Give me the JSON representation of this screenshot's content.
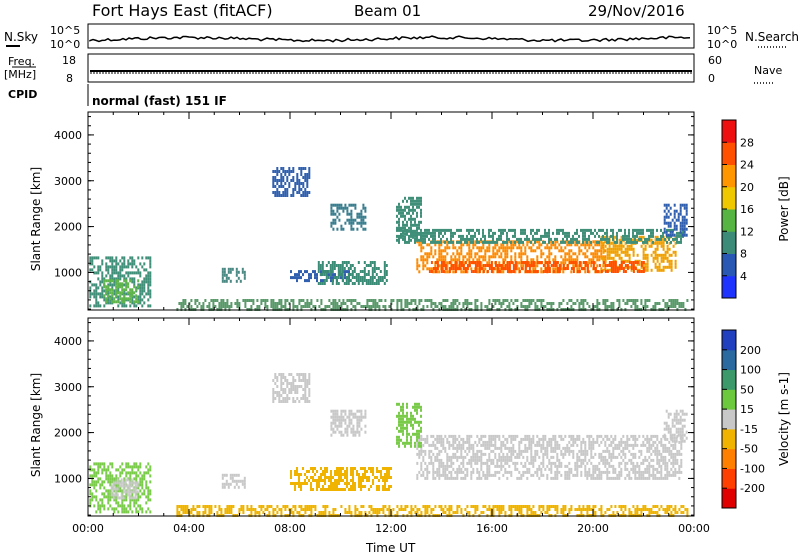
{
  "header": {
    "station": "Fort Hays East (fitACF)",
    "beam": "Beam 01",
    "date": "29/Nov/2016"
  },
  "strip_labels": {
    "nsky": "N.Sky",
    "nsearch": "N.Search",
    "freq_top": "Freq.",
    "freq_unit": "[MHz]",
    "nave": "Nave",
    "cpid": "CPID",
    "cpid_value": "normal (fast) 151 IF"
  },
  "strip_ticks": {
    "noise_left": [
      "10^5",
      "10^0"
    ],
    "noise_right": [
      "10^5",
      "10^0"
    ],
    "freq_left": [
      "18",
      "8"
    ],
    "nave_right": [
      "60",
      "0"
    ]
  },
  "chart_data": [
    {
      "type": "heatmap",
      "name": "power-panel",
      "ylabel": "Slant Range [km]",
      "ylim": [
        180,
        4500
      ],
      "yticks": [
        1000,
        2000,
        3000,
        4000
      ],
      "xlabel": "",
      "xlim": [
        0,
        24
      ],
      "xticks": [
        0,
        4,
        8,
        12,
        16,
        20,
        24
      ],
      "xtick_labels": [
        "00:00",
        "04:00",
        "08:00",
        "12:00",
        "16:00",
        "20:00",
        "00:00"
      ],
      "colorbar": {
        "label": "Power [dB]",
        "ticks": [
          "4",
          "8",
          "12",
          "16",
          "20",
          "24",
          "28"
        ],
        "colors": [
          "#1f33ff",
          "#2858b4",
          "#3c8a78",
          "#56b443",
          "#f0c800",
          "#ff9600",
          "#ff5000",
          "#ee1010"
        ]
      },
      "regions": [
        {
          "t0": 0.05,
          "t1": 2.5,
          "r0": 250,
          "r1": 1350,
          "color": "#3f8f79"
        },
        {
          "t0": 0.6,
          "t1": 2.0,
          "r0": 350,
          "r1": 850,
          "color": "#5fb44c"
        },
        {
          "t0": 5.3,
          "t1": 6.2,
          "r0": 800,
          "r1": 1100,
          "color": "#4b8a84"
        },
        {
          "t0": 8.0,
          "t1": 10.3,
          "r0": 850,
          "r1": 1050,
          "color": "#2f5fae"
        },
        {
          "t0": 9.1,
          "t1": 11.8,
          "r0": 780,
          "r1": 1250,
          "color": "#3a8c76"
        },
        {
          "t0": 9.6,
          "t1": 11.0,
          "r0": 1950,
          "r1": 2500,
          "color": "#3a7d8e"
        },
        {
          "t0": 7.3,
          "t1": 8.8,
          "r0": 2700,
          "r1": 3300,
          "color": "#2f5fae"
        },
        {
          "t0": 3.5,
          "t1": 23.7,
          "r0": 180,
          "r1": 420,
          "color": "#5a9a6a"
        },
        {
          "t0": 13.0,
          "t1": 20.5,
          "r0": 1000,
          "r1": 1700,
          "color": "#ff8a00"
        },
        {
          "t0": 20.3,
          "t1": 23.3,
          "r0": 1050,
          "r1": 1800,
          "color": "#f0a000"
        },
        {
          "t0": 12.2,
          "t1": 23.6,
          "r0": 1650,
          "r1": 1950,
          "color": "#3f8f79"
        },
        {
          "t0": 13.5,
          "t1": 22.0,
          "r0": 1000,
          "r1": 1250,
          "color": "#ff5000"
        },
        {
          "t0": 12.2,
          "t1": 13.2,
          "r0": 1700,
          "r1": 2650,
          "color": "#3f8f79"
        },
        {
          "t0": 22.8,
          "t1": 23.7,
          "r0": 1800,
          "r1": 2500,
          "color": "#2f5fae"
        }
      ]
    },
    {
      "type": "heatmap",
      "name": "velocity-panel",
      "ylabel": "Slant Range [km]",
      "ylim": [
        180,
        4500
      ],
      "yticks": [
        1000,
        2000,
        3000,
        4000
      ],
      "xlabel": "Time UT",
      "xlim": [
        0,
        24
      ],
      "xticks": [
        0,
        4,
        8,
        12,
        16,
        20,
        24
      ],
      "xtick_labels": [
        "00:00",
        "04:00",
        "08:00",
        "12:00",
        "16:00",
        "20:00",
        "00:00"
      ],
      "colorbar": {
        "label": "Velocity [m s-1]",
        "ticks": [
          "200",
          "100",
          "50",
          "15",
          "-15",
          "-50",
          "-100",
          "-200"
        ],
        "colors": [
          "#2040c0",
          "#2a6aa0",
          "#3c9a6a",
          "#6cc83c",
          "#c8c8c8",
          "#f0b400",
          "#ff8000",
          "#ff4000",
          "#e00000"
        ]
      },
      "regions": [
        {
          "t0": 0.05,
          "t1": 2.5,
          "r0": 250,
          "r1": 1350,
          "color": "#7acb4a"
        },
        {
          "t0": 0.9,
          "t1": 2.0,
          "r0": 550,
          "r1": 1000,
          "color": "#c8c8c8"
        },
        {
          "t0": 5.3,
          "t1": 6.2,
          "r0": 800,
          "r1": 1100,
          "color": "#c8c8c8"
        },
        {
          "t0": 8.0,
          "t1": 12.0,
          "r0": 780,
          "r1": 1250,
          "color": "#f0b400"
        },
        {
          "t0": 9.6,
          "t1": 11.0,
          "r0": 1950,
          "r1": 2500,
          "color": "#c8c8c8"
        },
        {
          "t0": 7.3,
          "t1": 8.8,
          "r0": 2700,
          "r1": 3300,
          "color": "#c8c8c8"
        },
        {
          "t0": 3.5,
          "t1": 23.7,
          "r0": 180,
          "r1": 420,
          "color": "#f0b400"
        },
        {
          "t0": 13.0,
          "t1": 23.5,
          "r0": 1000,
          "r1": 1950,
          "color": "#c8c8c8"
        },
        {
          "t0": 12.2,
          "t1": 13.2,
          "r0": 1700,
          "r1": 2650,
          "color": "#7acb4a"
        },
        {
          "t0": 22.8,
          "t1": 23.7,
          "r0": 1800,
          "r1": 2500,
          "color": "#c8c8c8"
        }
      ]
    }
  ]
}
